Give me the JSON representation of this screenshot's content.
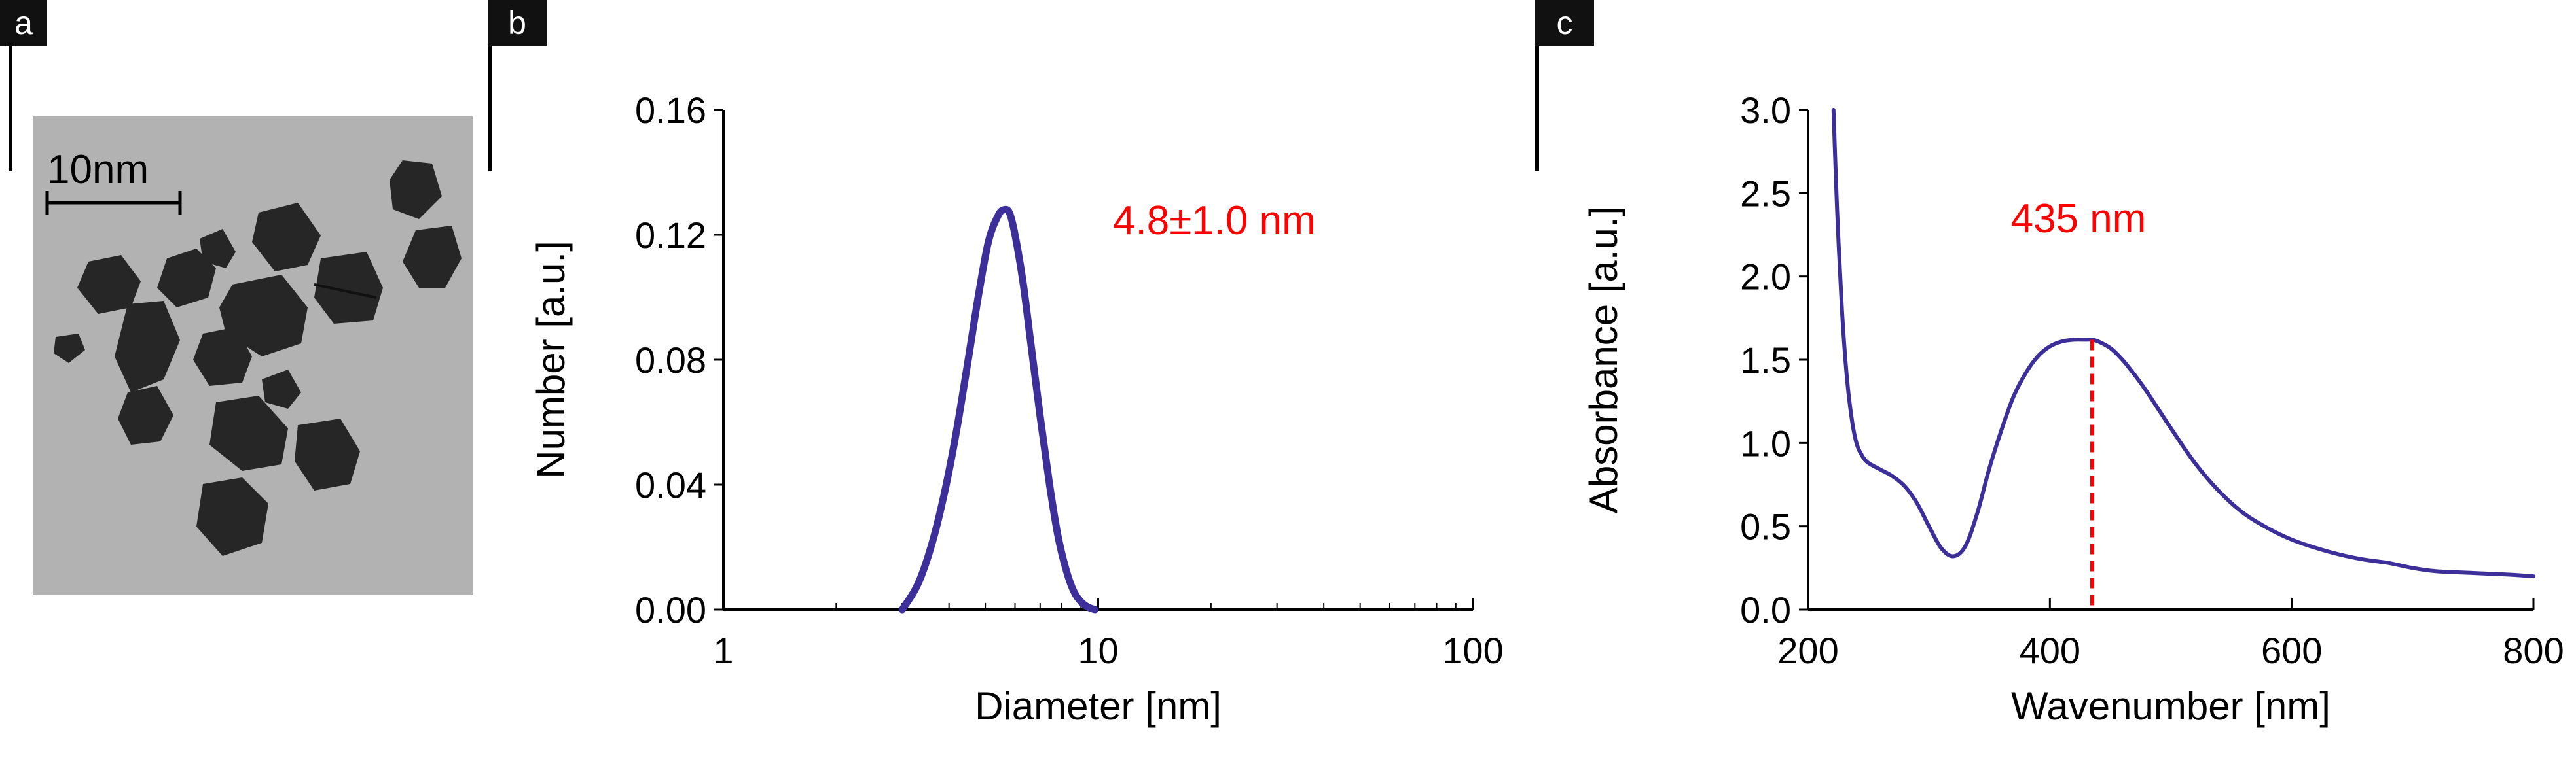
{
  "panels": {
    "a": {
      "label": "a",
      "scale_bar": "10nm"
    },
    "b": {
      "label": "b"
    },
    "c": {
      "label": "c"
    }
  },
  "colors": {
    "curve": "#3d2f9a",
    "annotation": "#ff0000",
    "axis": "#000000",
    "label_bg": "#111111",
    "tem_bg": "#b2b2b2",
    "particle": "#262626"
  },
  "chart_data": [
    {
      "type": "line",
      "panel": "b",
      "title": "",
      "xlabel": "Diameter [nm]",
      "ylabel": "Number [a.u.]",
      "xscale": "log",
      "xlim": [
        1,
        100
      ],
      "ylim": [
        0,
        0.16
      ],
      "xticks": [
        1,
        10,
        100
      ],
      "xtick_labels": [
        "1",
        "10",
        "100"
      ],
      "yticks": [
        0,
        0.04,
        0.08,
        0.12,
        0.16
      ],
      "ytick_labels": [
        "0.00",
        "0.04",
        "0.08",
        "0.12",
        "0.16"
      ],
      "grid": false,
      "annotation": "4.8±1.0 nm",
      "series": [
        {
          "x": [
            3.0,
            3.3,
            3.6,
            3.9,
            4.2,
            4.5,
            4.8,
            5.1,
            5.4,
            5.6,
            5.8,
            6.0,
            6.3,
            6.6,
            7.0,
            7.4,
            7.8,
            8.2,
            8.6,
            9.0,
            9.4,
            9.8
          ],
          "y": [
            0.0,
            0.008,
            0.021,
            0.038,
            0.058,
            0.08,
            0.101,
            0.118,
            0.126,
            0.128,
            0.127,
            0.12,
            0.105,
            0.086,
            0.062,
            0.041,
            0.024,
            0.013,
            0.006,
            0.0025,
            0.0008,
            0.0
          ]
        }
      ]
    },
    {
      "type": "line",
      "panel": "c",
      "title": "",
      "xlabel": "Wavenumber [nm]",
      "ylabel": "Absorbance [a.u.]",
      "xlim": [
        200,
        800
      ],
      "ylim": [
        0,
        3.0
      ],
      "xticks": [
        200,
        400,
        600,
        800
      ],
      "xtick_labels": [
        "200",
        "400",
        "600",
        "800"
      ],
      "yticks": [
        0,
        0.5,
        1.0,
        1.5,
        2.0,
        2.5,
        3.0
      ],
      "ytick_labels": [
        "0.0",
        "0.5",
        "1.0",
        "1.5",
        "2.0",
        "2.5",
        "3.0"
      ],
      "grid": false,
      "annotation": "435 nm",
      "marker_x": 435,
      "series": [
        {
          "x": [
            221,
            224,
            228,
            232,
            236,
            240,
            245,
            250,
            260,
            270,
            280,
            290,
            300,
            310,
            320,
            330,
            340,
            350,
            360,
            370,
            380,
            390,
            400,
            410,
            420,
            430,
            435,
            440,
            450,
            460,
            470,
            480,
            500,
            520,
            540,
            560,
            580,
            600,
            620,
            640,
            660,
            680,
            700,
            720,
            750,
            780,
            800
          ],
          "y": [
            3.0,
            2.4,
            1.8,
            1.4,
            1.15,
            1.0,
            0.92,
            0.88,
            0.84,
            0.8,
            0.74,
            0.64,
            0.5,
            0.37,
            0.32,
            0.38,
            0.58,
            0.85,
            1.08,
            1.28,
            1.42,
            1.52,
            1.58,
            1.61,
            1.62,
            1.62,
            1.62,
            1.61,
            1.57,
            1.5,
            1.41,
            1.31,
            1.09,
            0.88,
            0.71,
            0.58,
            0.49,
            0.42,
            0.37,
            0.33,
            0.3,
            0.28,
            0.25,
            0.23,
            0.22,
            0.21,
            0.2
          ]
        }
      ]
    }
  ]
}
